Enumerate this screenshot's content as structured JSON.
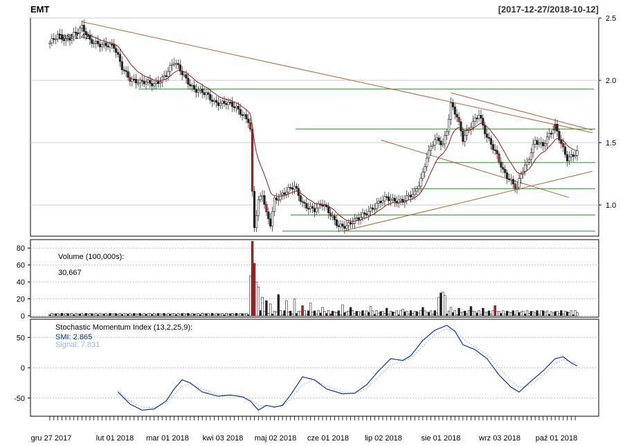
{
  "header": {
    "symbol": "EMT",
    "date_range": "[2017-12-27/2018-10-12]"
  },
  "chart_data": [
    {
      "type": "candlestick",
      "panel": "price",
      "label": "Last 1.42",
      "ylim": [
        0.75,
        2.5
      ],
      "yticks": [
        "2.5",
        "2.0",
        "1.5",
        "1.0"
      ],
      "ytick_values": [
        2.5,
        2.0,
        1.5,
        1.0
      ],
      "support_levels": [
        1.93,
        1.61,
        1.34,
        1.13,
        0.92,
        0.79
      ],
      "x_axis_labels": [
        "gru 27 2017",
        "lut 01 2018",
        "mar 01 2018",
        "kwi 03 2018",
        "maj 02 2018",
        "cze 01 2018",
        "lip 02 2018",
        "sie 01 2018",
        "wrz 03 2018",
        "paź 01 2018"
      ],
      "close_keyframes": [
        [
          0,
          2.3
        ],
        [
          4,
          2.35
        ],
        [
          8,
          2.32
        ],
        [
          12,
          2.38
        ],
        [
          16,
          2.42
        ],
        [
          20,
          2.31
        ],
        [
          28,
          2.29
        ],
        [
          32,
          2.26
        ],
        [
          36,
          2.1
        ],
        [
          40,
          2.02
        ],
        [
          45,
          1.98
        ],
        [
          52,
          1.97
        ],
        [
          58,
          2.05
        ],
        [
          62,
          2.14
        ],
        [
          66,
          2.06
        ],
        [
          72,
          1.93
        ],
        [
          78,
          1.88
        ],
        [
          82,
          1.83
        ],
        [
          88,
          1.82
        ],
        [
          92,
          1.78
        ],
        [
          96,
          1.73
        ],
        [
          99,
          1.69
        ],
        [
          100,
          1.61
        ],
        [
          101,
          1.1
        ],
        [
          102,
          0.83
        ],
        [
          104,
          1.02
        ],
        [
          106,
          1.08
        ],
        [
          108,
          0.92
        ],
        [
          110,
          0.85
        ],
        [
          112,
          1.05
        ],
        [
          116,
          1.09
        ],
        [
          122,
          1.14
        ],
        [
          126,
          1.02
        ],
        [
          132,
          0.96
        ],
        [
          136,
          1.0
        ],
        [
          140,
          0.93
        ],
        [
          144,
          0.84
        ],
        [
          148,
          0.82
        ],
        [
          152,
          0.87
        ],
        [
          156,
          0.93
        ],
        [
          162,
          0.98
        ],
        [
          168,
          1.06
        ],
        [
          176,
          1.03
        ],
        [
          182,
          1.09
        ],
        [
          186,
          1.26
        ],
        [
          188,
          1.4
        ],
        [
          192,
          1.52
        ],
        [
          196,
          1.48
        ],
        [
          198,
          1.6
        ],
        [
          200,
          1.82
        ],
        [
          203,
          1.72
        ],
        [
          206,
          1.52
        ],
        [
          210,
          1.63
        ],
        [
          214,
          1.74
        ],
        [
          218,
          1.55
        ],
        [
          222,
          1.42
        ],
        [
          226,
          1.27
        ],
        [
          230,
          1.2
        ],
        [
          233,
          1.14
        ],
        [
          235,
          1.25
        ],
        [
          238,
          1.32
        ],
        [
          242,
          1.52
        ],
        [
          246,
          1.49
        ],
        [
          249,
          1.56
        ],
        [
          252,
          1.62
        ],
        [
          254,
          1.53
        ],
        [
          256,
          1.45
        ],
        [
          258,
          1.38
        ],
        [
          261,
          1.41
        ],
        [
          263,
          1.42
        ]
      ],
      "down_days": [
        37,
        40,
        46,
        64,
        100,
        101,
        108,
        126,
        140,
        204,
        222,
        224,
        232,
        252,
        256
      ]
    },
    {
      "type": "bar",
      "panel": "volume",
      "label": "Volume (100,000s):",
      "last_value": "30,667",
      "ylim": [
        0,
        90
      ],
      "yticks": [
        "80",
        "60",
        "40",
        "20",
        "0"
      ],
      "ytick_values": [
        80,
        60,
        40,
        20,
        0
      ],
      "spikes": [
        [
          100,
          47
        ],
        [
          101,
          88
        ],
        [
          102,
          62
        ],
        [
          103,
          40
        ],
        [
          104,
          34
        ],
        [
          106,
          22
        ],
        [
          108,
          18
        ],
        [
          110,
          14
        ],
        [
          114,
          25
        ],
        [
          118,
          18
        ],
        [
          122,
          20
        ],
        [
          126,
          12
        ],
        [
          130,
          15
        ],
        [
          136,
          10
        ],
        [
          146,
          13
        ],
        [
          150,
          10
        ],
        [
          160,
          11
        ],
        [
          168,
          9
        ],
        [
          176,
          8
        ],
        [
          186,
          10
        ],
        [
          194,
          22
        ],
        [
          195,
          27
        ],
        [
          196,
          28
        ],
        [
          197,
          24
        ],
        [
          200,
          10
        ],
        [
          204,
          9
        ],
        [
          210,
          11
        ],
        [
          216,
          9
        ],
        [
          222,
          12
        ],
        [
          226,
          6
        ],
        [
          246,
          6
        ],
        [
          250,
          5
        ]
      ],
      "red_bars": [
        101,
        102,
        126,
        140,
        222
      ]
    },
    {
      "type": "line",
      "panel": "smi",
      "label": "Stochastic Momentum Index (13,2,25,9):",
      "series": [
        {
          "name": "SMI",
          "value_label": "SMI: 2.865",
          "color": "#0b2fa0",
          "keyframes": [
            [
              34,
              -40
            ],
            [
              40,
              -60
            ],
            [
              46,
              -70
            ],
            [
              52,
              -68
            ],
            [
              58,
              -55
            ],
            [
              62,
              -35
            ],
            [
              66,
              -20
            ],
            [
              70,
              -25
            ],
            [
              76,
              -40
            ],
            [
              84,
              -47
            ],
            [
              90,
              -45
            ],
            [
              96,
              -48
            ],
            [
              100,
              -55
            ],
            [
              104,
              -70
            ],
            [
              108,
              -62
            ],
            [
              112,
              -65
            ],
            [
              116,
              -62
            ],
            [
              120,
              -45
            ],
            [
              126,
              -15
            ],
            [
              132,
              -20
            ],
            [
              138,
              -35
            ],
            [
              146,
              -43
            ],
            [
              152,
              -42
            ],
            [
              158,
              -28
            ],
            [
              164,
              -5
            ],
            [
              170,
              15
            ],
            [
              176,
              12
            ],
            [
              180,
              20
            ],
            [
              186,
              45
            ],
            [
              192,
              62
            ],
            [
              198,
              70
            ],
            [
              202,
              60
            ],
            [
              206,
              38
            ],
            [
              212,
              30
            ],
            [
              218,
              15
            ],
            [
              224,
              -12
            ],
            [
              230,
              -32
            ],
            [
              234,
              -40
            ],
            [
              240,
              -22
            ],
            [
              246,
              -5
            ],
            [
              252,
              15
            ],
            [
              256,
              18
            ],
            [
              260,
              8
            ],
            [
              263,
              3
            ]
          ]
        },
        {
          "name": "Signal",
          "value_label": "Signal: 7.831",
          "color": "#9eb3e6",
          "keyframes": [
            [
              34,
              -38
            ],
            [
              40,
              -55
            ],
            [
              46,
              -65
            ],
            [
              52,
              -66
            ],
            [
              58,
              -58
            ],
            [
              62,
              -45
            ],
            [
              66,
              -30
            ],
            [
              70,
              -27
            ],
            [
              76,
              -35
            ],
            [
              84,
              -44
            ],
            [
              90,
              -46
            ],
            [
              96,
              -47
            ],
            [
              100,
              -52
            ],
            [
              104,
              -62
            ],
            [
              108,
              -63
            ],
            [
              112,
              -64
            ],
            [
              116,
              -63
            ],
            [
              120,
              -52
            ],
            [
              126,
              -28
            ],
            [
              132,
              -20
            ],
            [
              138,
              -30
            ],
            [
              146,
              -40
            ],
            [
              152,
              -43
            ],
            [
              158,
              -34
            ],
            [
              164,
              -15
            ],
            [
              170,
              5
            ],
            [
              176,
              10
            ],
            [
              180,
              16
            ],
            [
              186,
              35
            ],
            [
              192,
              55
            ],
            [
              198,
              64
            ],
            [
              202,
              62
            ],
            [
              206,
              48
            ],
            [
              212,
              34
            ],
            [
              218,
              22
            ],
            [
              224,
              0
            ],
            [
              230,
              -22
            ],
            [
              234,
              -33
            ],
            [
              240,
              -28
            ],
            [
              246,
              -12
            ],
            [
              252,
              6
            ],
            [
              256,
              14
            ],
            [
              260,
              10
            ],
            [
              263,
              7.8
            ]
          ]
        }
      ],
      "ylim": [
        -80,
        80
      ],
      "yticks": [
        "50",
        "0",
        "-50"
      ],
      "ytick_values": [
        50,
        0,
        -50
      ]
    }
  ]
}
